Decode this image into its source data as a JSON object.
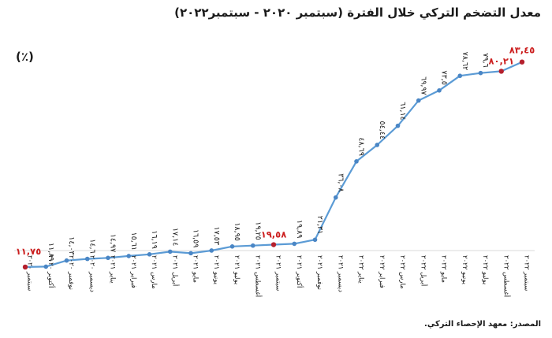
{
  "chart_data": {
    "type": "line",
    "title": "معدل التضخم التركي خلال الفترة (سبتمبر ٢٠٢٠ - سبتمبر٢٠٢٢)",
    "unit_label": "(٪)",
    "source": "المصدر: معهد الإحصاء التركي.",
    "categories": [
      "سبتمبر ٢٠٢٠",
      "أكتوبر ٢٠٢٠",
      "نوفمبر ٢٠٢٠",
      "ديسمبر ٢٠٢٠",
      "يناير ٢٠٢١",
      "فبراير ٢٠٢١",
      "مارس ٢٠٢١",
      "أبريل ٢٠٢١",
      "مايو ٢٠٢١",
      "يونيو ٢٠٢١",
      "يوليو ٢٠٢١",
      "أغسطس ٢٠٢١",
      "سبتمبر ٢٠٢١",
      "أكتوبر ٢٠٢١",
      "نوفمبر ٢٠٢١",
      "ديسمبر ٢٠٢١",
      "يناير ٢٠٢٢",
      "فبراير ٢٠٢٢",
      "مارس ٢٠٢٢",
      "أبريل ٢٠٢٢",
      "مايو ٢٠٢٢",
      "يونيو ٢٠٢٢",
      "يوليو ٢٠٢٢",
      "أغسطس ٢٠٢٢",
      "سبتمبر ٢٠٢٢"
    ],
    "values": [
      11.75,
      11.89,
      14.03,
      14.6,
      14.97,
      15.61,
      16.19,
      17.14,
      16.59,
      17.53,
      18.95,
      19.25,
      19.58,
      19.89,
      21.31,
      36.08,
      48.69,
      54.44,
      61.14,
      69.97,
      73.5,
      78.62,
      79.6,
      80.21,
      83.45
    ],
    "data_labels": [
      "١١,٧٥",
      "١١,٨٩",
      "١٤,٠٣",
      "١٤,٦",
      "١٤,٩٧",
      "١٥,٦١",
      "١٦,١٩",
      "١٧,١٤",
      "١٦,٥٩",
      "١٧,٥٣",
      "١٨,٩٥",
      "١٩,٢٥",
      "١٩,٥٨",
      "١٩,٨٩",
      "٢١,٣١",
      "٣٦,٠٨",
      "٤٨,٦٩",
      "٥٤,٤٤",
      "٦١,١٤",
      "٦٩,٩٧",
      "٧٣,٥",
      "٧٨,٦٢",
      "٧٩,٦",
      "٨٠,٢١",
      "٨٣,٤٥"
    ],
    "highlighted_points": [
      0,
      12,
      23,
      24
    ],
    "ylim": [
      0,
      90
    ],
    "grid": false,
    "colors": {
      "line": "#5b9bd5",
      "marker": "#4a86c5",
      "highlight": "#b5202d",
      "highlight_label": "#cc1f1f",
      "label": "#222222",
      "axis": "#d9d9d9"
    }
  }
}
